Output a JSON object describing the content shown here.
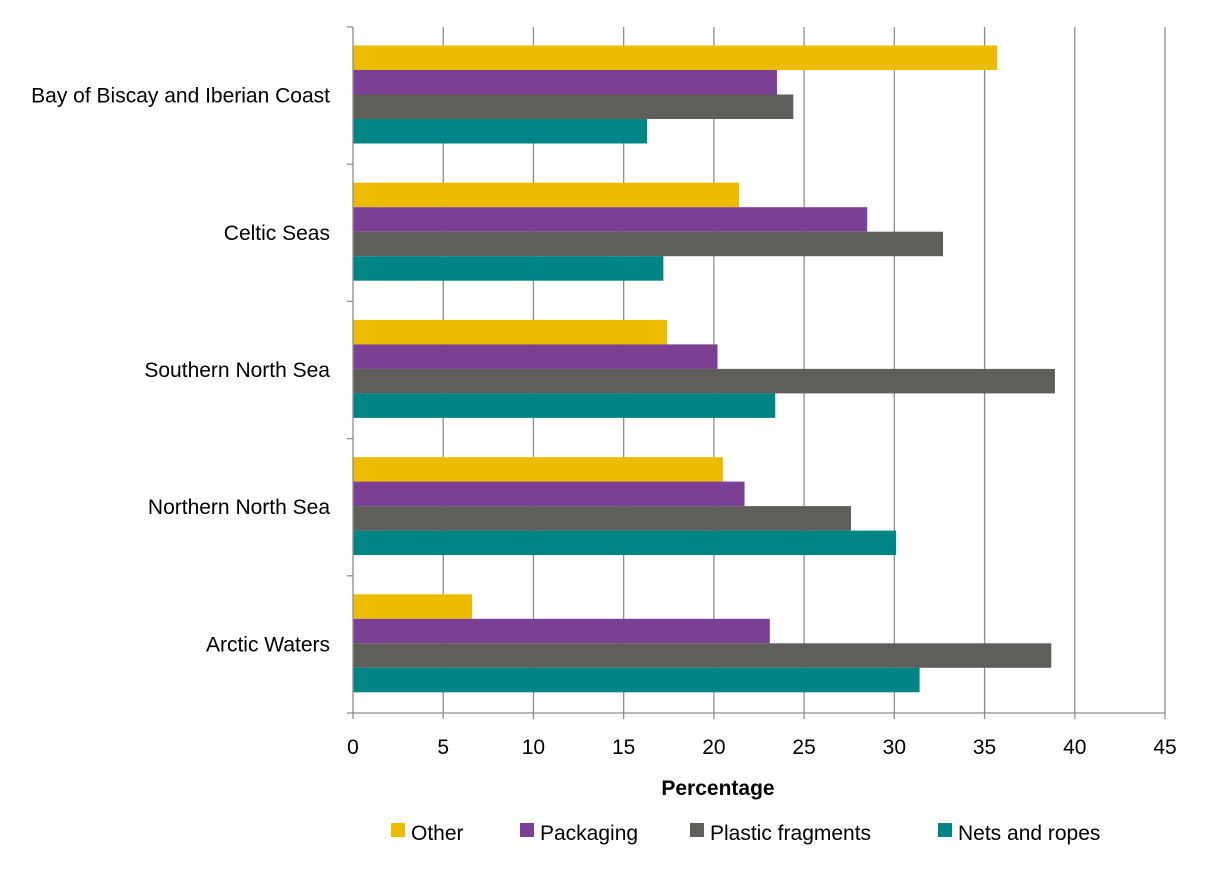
{
  "chart_data": {
    "type": "bar",
    "orientation": "horizontal",
    "categories": [
      "Bay of Biscay and Iberian Coast",
      "Celtic Seas",
      "Southern North Sea",
      "Northern North Sea",
      "Arctic Waters"
    ],
    "series": [
      {
        "name": "Other",
        "color": "#EBBC00",
        "values": [
          35.7,
          21.4,
          17.4,
          20.5,
          6.6
        ]
      },
      {
        "name": "Packaging",
        "color": "#7B3F93",
        "values": [
          23.5,
          28.5,
          20.2,
          21.7,
          23.1
        ]
      },
      {
        "name": "Plastic fragments",
        "color": "#5F5E5A",
        "values": [
          24.4,
          32.7,
          38.9,
          27.6,
          38.7
        ]
      },
      {
        "name": "Nets and ropes",
        "color": "#008587",
        "values": [
          16.3,
          17.2,
          23.4,
          30.1,
          31.4
        ]
      }
    ],
    "xlabel": "Percentage",
    "ylabel": "",
    "title": "",
    "xlim": [
      0,
      45
    ],
    "xticks": [
      0,
      5,
      10,
      15,
      20,
      25,
      30,
      35,
      40,
      45
    ],
    "grid": "vertical",
    "legend_position": "bottom"
  }
}
